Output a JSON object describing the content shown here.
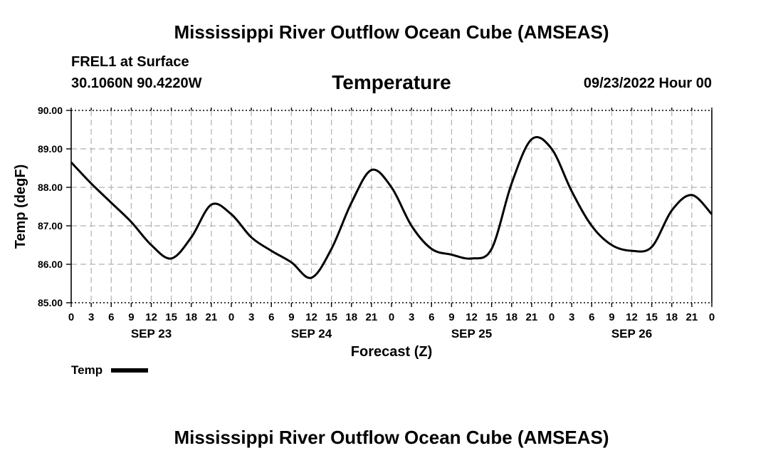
{
  "header": {
    "title": "Mississippi River Outflow Ocean Cube (AMSEAS)",
    "station": "FREL1 at Surface",
    "coords": "30.1060N  90.4220W",
    "chart_title": "Temperature",
    "datetime": "09/23/2022 Hour 00"
  },
  "footer": {
    "title": "Mississippi River Outflow Ocean Cube (AMSEAS)"
  },
  "colors": {
    "line": "#000000",
    "grid": "#b0b0b0",
    "background": "#ffffff"
  },
  "chart_data": {
    "type": "line",
    "title": "Temperature",
    "xlabel": "Forecast (Z)",
    "ylabel": "Temp (degF)",
    "xlim": [
      0,
      96
    ],
    "ylim": [
      85,
      90
    ],
    "yticks": [
      "85.00",
      "86.00",
      "87.00",
      "88.00",
      "89.00",
      "90.00"
    ],
    "xtick_labels": [
      "0",
      "3",
      "6",
      "9",
      "12",
      "15",
      "18",
      "21",
      "0",
      "3",
      "6",
      "9",
      "12",
      "15",
      "18",
      "21",
      "0",
      "3",
      "6",
      "9",
      "12",
      "15",
      "18",
      "21",
      "0",
      "3",
      "6",
      "9",
      "12",
      "15",
      "18",
      "21",
      "0"
    ],
    "day_labels": [
      {
        "label": "SEP 23",
        "hour": 12
      },
      {
        "label": "SEP 24",
        "hour": 36
      },
      {
        "label": "SEP 25",
        "hour": 60
      },
      {
        "label": "SEP 26",
        "hour": 84
      }
    ],
    "grid": true,
    "legend": "bottom-left",
    "series": [
      {
        "name": "Temp",
        "x": [
          0,
          3,
          6,
          9,
          12,
          15,
          18,
          21,
          24,
          27,
          30,
          33,
          36,
          39,
          42,
          45,
          48,
          51,
          54,
          57,
          60,
          63,
          66,
          69,
          72,
          75,
          78,
          81,
          84,
          87,
          90,
          93,
          96
        ],
        "y": [
          88.65,
          88.1,
          87.6,
          87.1,
          86.5,
          86.15,
          86.7,
          87.55,
          87.3,
          86.7,
          86.35,
          86.05,
          85.65,
          86.4,
          87.6,
          88.45,
          88.0,
          87.0,
          86.4,
          86.25,
          86.15,
          86.4,
          88.1,
          89.25,
          89.0,
          87.9,
          87.0,
          86.5,
          86.35,
          86.45,
          87.4,
          87.8,
          87.3
        ]
      }
    ]
  }
}
